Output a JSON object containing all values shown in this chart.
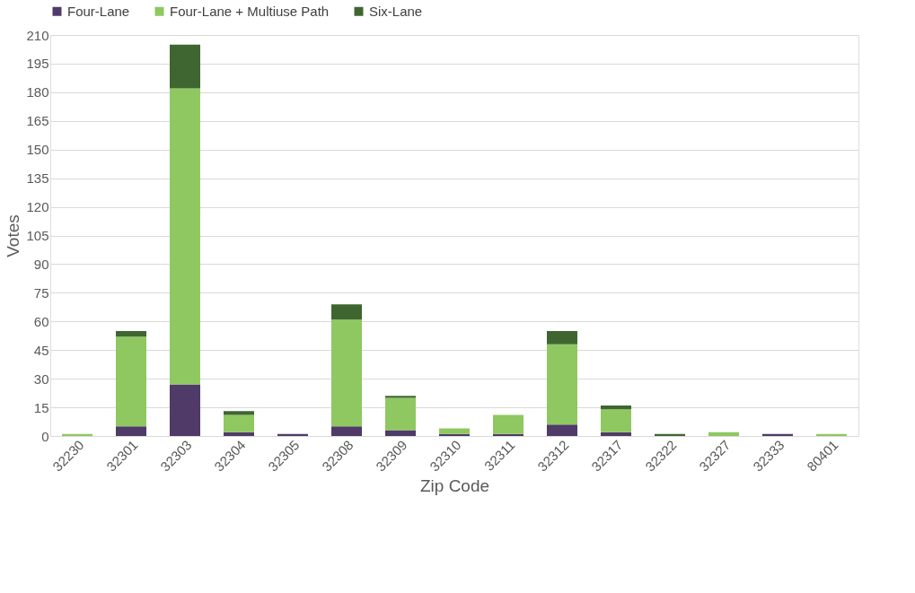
{
  "chart_data": {
    "type": "bar",
    "stacked": true,
    "xlabel": "Zip Code",
    "ylabel": "Votes",
    "categories": [
      "32230",
      "32301",
      "32303",
      "32304",
      "32305",
      "32308",
      "32309",
      "32310",
      "32311",
      "32312",
      "32317",
      "32322",
      "32327",
      "32333",
      "80401"
    ],
    "series": [
      {
        "name": "Four-Lane",
        "color": "#4f3a68",
        "values": [
          0,
          5,
          27,
          2,
          1,
          5,
          3,
          1,
          1,
          6,
          2,
          0,
          0,
          1,
          0
        ]
      },
      {
        "name": "Four-Lane + Multiuse Path",
        "color": "#8fc860",
        "values": [
          1,
          47,
          155,
          9,
          0,
          56,
          17,
          3,
          10,
          42,
          12,
          0,
          2,
          0,
          1
        ]
      },
      {
        "name": "Six-Lane",
        "color": "#3f6630",
        "values": [
          0,
          3,
          23,
          2,
          0,
          8,
          1,
          0,
          0,
          7,
          2,
          1,
          0,
          0,
          0
        ]
      }
    ],
    "ylim": [
      0,
      210
    ],
    "yticks": [
      0,
      15,
      30,
      45,
      60,
      75,
      90,
      105,
      120,
      135,
      150,
      165,
      180,
      195,
      210
    ],
    "grid": "y",
    "legend": "top"
  }
}
